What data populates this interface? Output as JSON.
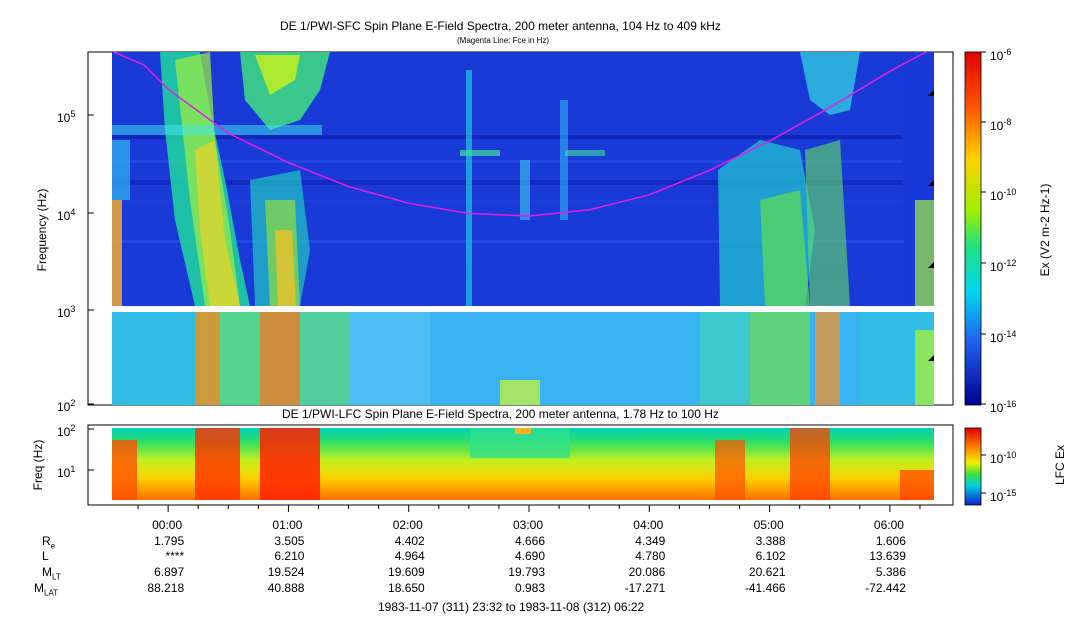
{
  "titles": {
    "sfc_title": "DE 1/PWI-SFC  Spin Plane E-Field Spectra, 200 meter antenna, 104 Hz to 409 kHz",
    "sfc_subtitle": "(Magenta Line: Fce in Hz)",
    "lfc_title": "DE 1/PWI-LFC  Spin Plane E-Field Spectra, 200 meter antenna, 1.78 Hz to 100 Hz"
  },
  "chart_data": [
    {
      "type": "heatmap",
      "name": "sfc",
      "ylabel": "Frequency (Hz)",
      "yscale": "log",
      "ylim": [
        100,
        409000
      ],
      "yticks": [
        {
          "base": "10",
          "exp": "5"
        },
        {
          "base": "10",
          "exp": "4"
        },
        {
          "base": "10",
          "exp": "3"
        },
        {
          "base": "10",
          "exp": "2"
        }
      ],
      "colorbar": {
        "label_prefix": "Ex (V",
        "label_full": "Ex (V2 m-2 Hz-1)",
        "scale": "log",
        "range": [
          1e-16,
          1e-06
        ],
        "ticks": [
          {
            "base": "10",
            "exp": "-6"
          },
          {
            "base": "10",
            "exp": "-8"
          },
          {
            "base": "10",
            "exp": "-10"
          },
          {
            "base": "10",
            "exp": "-12"
          },
          {
            "base": "10",
            "exp": "-14"
          },
          {
            "base": "10",
            "exp": "-16"
          }
        ]
      },
      "overlay": {
        "series": "Fce",
        "color": "#e020e0",
        "x_hours": [
          -0.45,
          -0.2,
          0.0,
          0.5,
          1.0,
          1.5,
          2.0,
          2.5,
          3.0,
          3.5,
          4.0,
          4.5,
          5.0,
          5.5,
          6.0,
          6.3
        ],
        "y_hz": [
          409000,
          300000,
          170000,
          60000,
          30000,
          17000,
          11500,
          9000,
          8500,
          9800,
          14000,
          25000,
          50000,
          110000,
          260000,
          409000
        ]
      }
    },
    {
      "type": "heatmap",
      "name": "lfc",
      "ylabel": "Freq (Hz)",
      "yscale": "log",
      "ylim": [
        1.78,
        100
      ],
      "yticks": [
        {
          "base": "10",
          "exp": "2"
        },
        {
          "base": "10",
          "exp": "1"
        }
      ],
      "colorbar": {
        "label": "LFC Ex",
        "scale": "log",
        "ticks": [
          {
            "base": "10",
            "exp": "-10"
          },
          {
            "base": "10",
            "exp": "-15"
          }
        ]
      }
    }
  ],
  "time_axis": {
    "tick_labels": [
      "00:00",
      "01:00",
      "02:00",
      "03:00",
      "04:00",
      "05:00",
      "06:00"
    ],
    "range_text": "1983-11-07 (311) 23:32 to 1983-11-08 (312) 06:22"
  },
  "ephemeris": {
    "rows": [
      {
        "label": "R",
        "sub": "e",
        "values": [
          "1.795",
          "3.505",
          "4.402",
          "4.666",
          "4.349",
          "3.388",
          "1.606"
        ]
      },
      {
        "label": "L",
        "sub": "",
        "values": [
          "****",
          "6.210",
          "4.964",
          "4.690",
          "4.780",
          "6.102",
          "13.639"
        ]
      },
      {
        "label": "M",
        "sub": "LT",
        "values": [
          "6.897",
          "19.524",
          "19.609",
          "19.793",
          "20.086",
          "20.621",
          "5.386"
        ]
      },
      {
        "label": "M",
        "sub": "LAT",
        "values": [
          "88.218",
          "40.888",
          "18.650",
          "0.983",
          "-17.271",
          "-41.466",
          "-72.442"
        ]
      }
    ]
  }
}
